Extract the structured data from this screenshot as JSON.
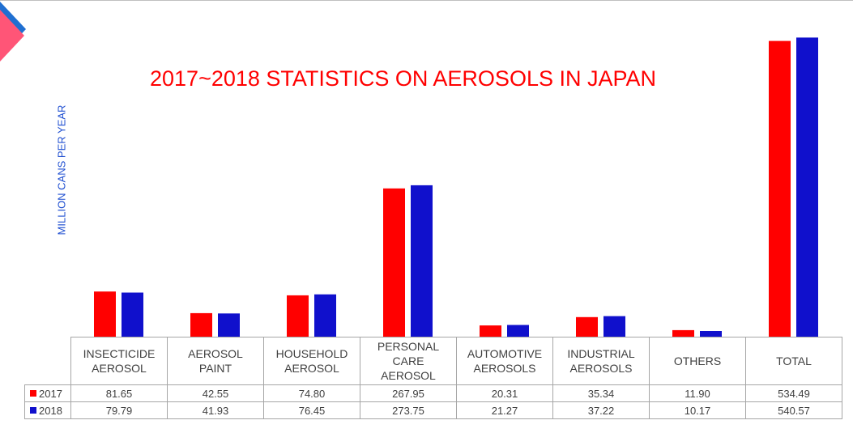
{
  "colors": {
    "s2017": "#ff0000",
    "s2018": "#1010cc",
    "title": "#ff0000",
    "ylabel": "#1f4fd1",
    "grid": "#a6a6a6"
  },
  "chart_data": {
    "type": "bar",
    "title": "2017~2018 STATISTICS ON AEROSOLS IN JAPAN",
    "ylabel": "MILLION CANS PER YEAR",
    "xlabel": "",
    "ylim": [
      0,
      550
    ],
    "grid": false,
    "legend": "table-left",
    "categories": [
      [
        "INSECTICIDE",
        "AEROSOL"
      ],
      [
        "AEROSOL",
        "PAINT"
      ],
      [
        "HOUSEHOLD",
        "AEROSOL"
      ],
      [
        "PERSONAL",
        "CARE",
        "AEROSOL"
      ],
      [
        "AUTOMOTIVE",
        "AEROSOLS"
      ],
      [
        "INDUSTRIAL",
        "AEROSOLS"
      ],
      [
        "OTHERS"
      ],
      [
        "TOTAL"
      ]
    ],
    "series": [
      {
        "name": "2017",
        "values": [
          81.65,
          42.55,
          74.8,
          267.95,
          20.31,
          35.34,
          11.9,
          534.49
        ],
        "labels": [
          "81.65",
          "42.55",
          "74.80",
          "267.95",
          "20.31",
          "35.34",
          "11.90",
          "534.49"
        ]
      },
      {
        "name": "2018",
        "values": [
          79.79,
          41.93,
          76.45,
          273.75,
          21.27,
          37.22,
          10.17,
          540.57
        ],
        "labels": [
          "79.79",
          "41.93",
          "76.45",
          "273.75",
          "21.27",
          "37.22",
          "10.17",
          "540.57"
        ]
      }
    ]
  }
}
